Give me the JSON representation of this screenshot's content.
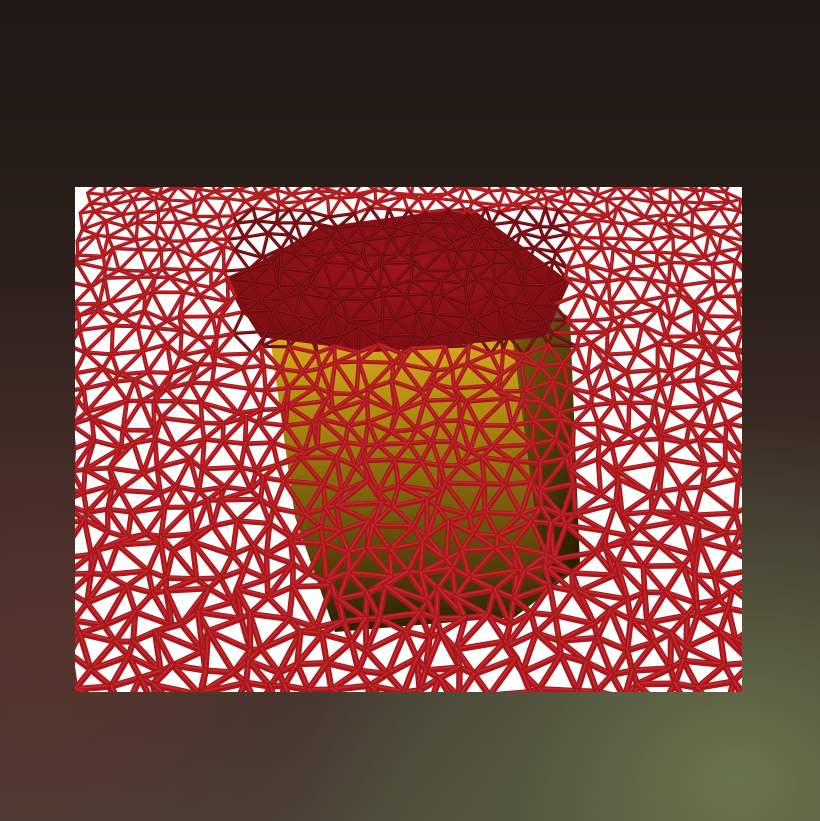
{
  "scene": {
    "subject": "wire-mesh-cloth-draped-over-cube",
    "colors": {
      "mesh_strut": "#a8171c",
      "mesh_highlight": "#d8383a",
      "mesh_shadow": "#6a0b10",
      "cube_gold": "#c9a21a",
      "cube_gold_dark": "#3a2a06",
      "render_background": "#ffffff",
      "backdrop_top": "#1f1815",
      "backdrop_bottom_right": "#6e7d50",
      "backdrop_bottom_left": "#5a322d"
    }
  }
}
